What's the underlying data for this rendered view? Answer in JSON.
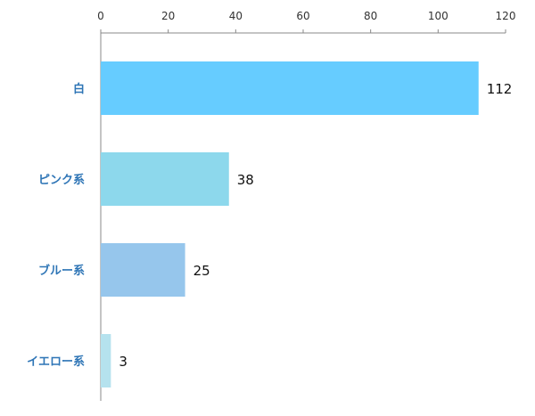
{
  "chart_data": {
    "type": "bar",
    "orientation": "horizontal",
    "categories": [
      "白",
      "ピンク系",
      "ブルー系",
      "イエロー系"
    ],
    "values": [
      112,
      38,
      25,
      3
    ],
    "colors": [
      "#66ccff",
      "#8dd8ec",
      "#96c6ec",
      "#b5e2ee"
    ],
    "xlim": [
      0,
      120
    ],
    "x_ticks": [
      0,
      20,
      40,
      60,
      80,
      100,
      120
    ],
    "x_tick_labels": [
      "0",
      "20",
      "40",
      "60",
      "80",
      "100",
      "120"
    ],
    "x_axis_position": "top",
    "data_labels": [
      "112",
      "38",
      "25",
      "3"
    ],
    "grid": false,
    "legend": "none",
    "label_color": "#2e75b6"
  }
}
